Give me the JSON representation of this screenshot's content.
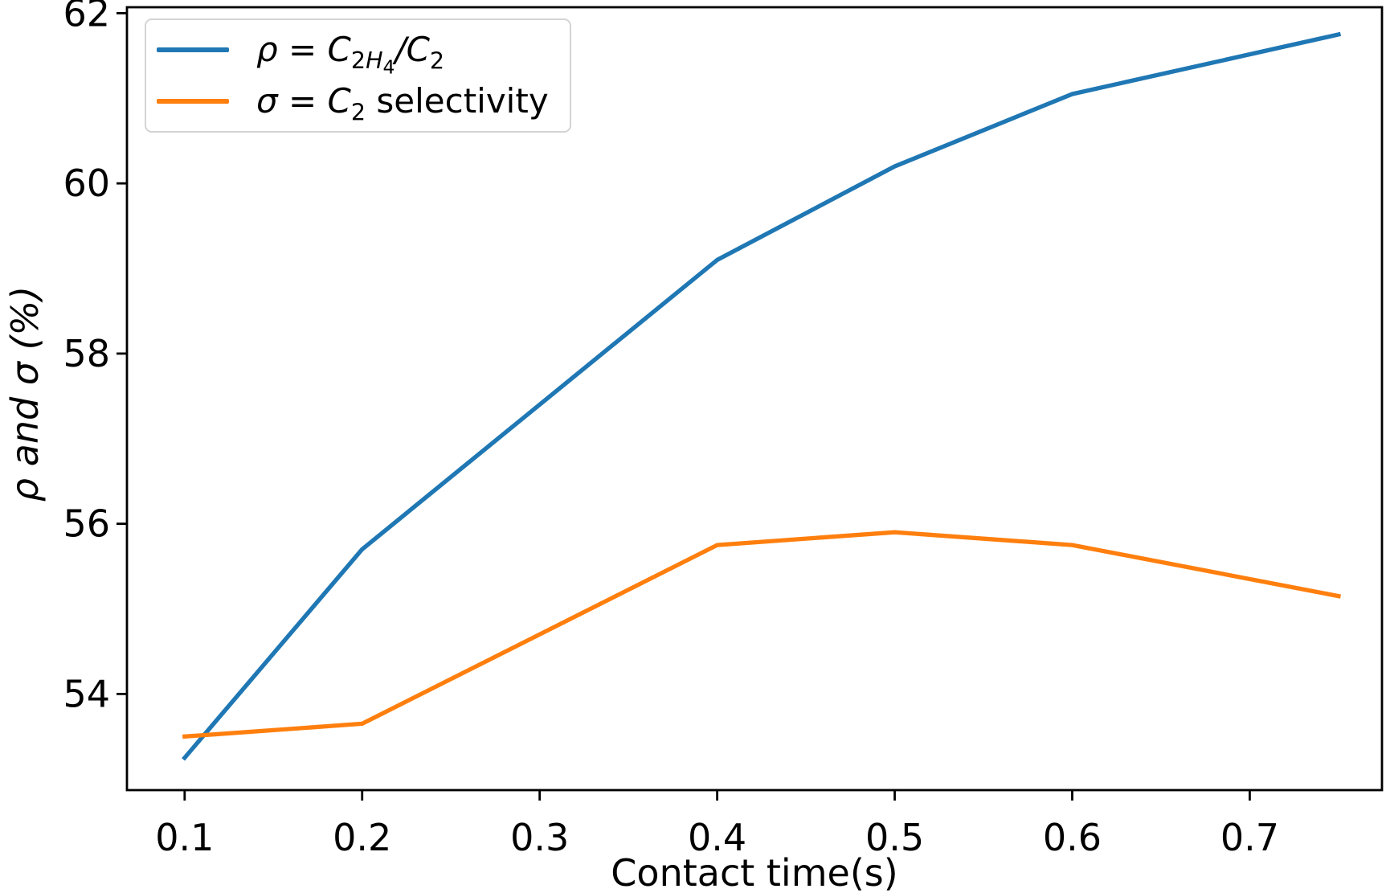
{
  "chart_data": {
    "type": "line",
    "x": [
      0.1,
      0.2,
      0.4,
      0.5,
      0.6,
      0.75
    ],
    "series": [
      {
        "name": "ρ = C₂H₄/C₂",
        "values": [
          53.25,
          55.7,
          59.1,
          60.2,
          61.05,
          61.75
        ],
        "color": "#1f77b4"
      },
      {
        "name": "σ = C₂ selectivity",
        "values": [
          53.5,
          53.65,
          55.75,
          55.9,
          55.75,
          55.15
        ],
        "color": "#ff7f0e"
      }
    ],
    "title": "",
    "xlabel": "Contact time(s)",
    "ylabel": "ρ and σ (%)",
    "xticks": [
      0.1,
      0.2,
      0.3,
      0.4,
      0.5,
      0.6,
      0.7
    ],
    "xtick_labels": [
      "0.1",
      "0.2",
      "0.3",
      "0.4",
      "0.5",
      "0.6",
      "0.7"
    ],
    "yticks": [
      54,
      56,
      58,
      60,
      62
    ],
    "ytick_labels": [
      "54",
      "56",
      "58",
      "60",
      "62"
    ],
    "xlim": [
      0.0675,
      0.7745
    ],
    "ylim": [
      52.87,
      62.07
    ],
    "grid": false,
    "legend_position": "upper left"
  },
  "axes": {
    "xlabel": "Contact time(s)",
    "ylabel": "ρ and σ (%)"
  },
  "legend": {
    "item1": {
      "pre": "ρ = C",
      "s1": "2",
      "s2": "H",
      "s3": "4",
      "mid": "/C",
      "s4": "2"
    },
    "item2": {
      "pre": "σ = C",
      "s1": "2",
      "post": " selectivity"
    }
  },
  "colors": {
    "series1": "#1f77b4",
    "series2": "#ff7f0e",
    "spine": "#000000",
    "legend_border": "#d4d4d4"
  }
}
